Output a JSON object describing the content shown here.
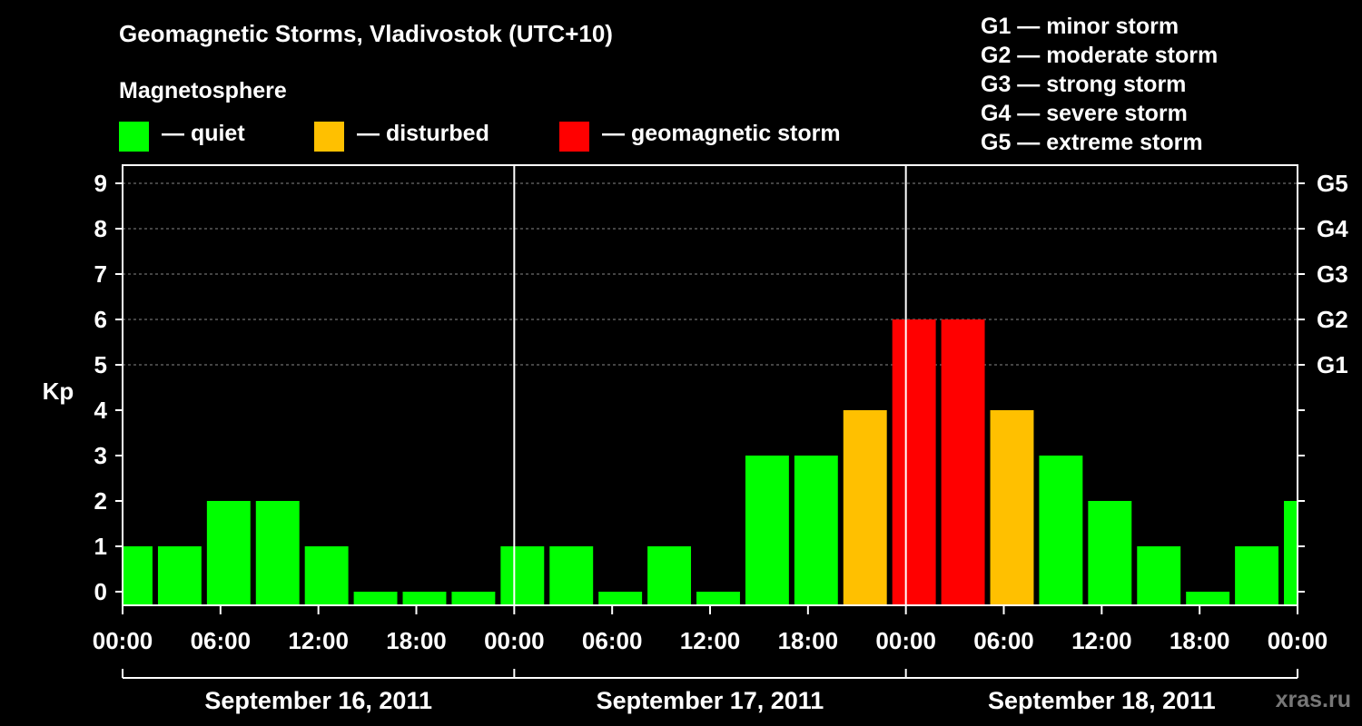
{
  "colors": {
    "quiet": "#00ff00",
    "disturbed": "#ffc000",
    "storm": "#ff0000",
    "background": "#000000",
    "grid": "#888888",
    "watermark": "#777777"
  },
  "legend": {
    "heading": "Magnetosphere",
    "items": [
      {
        "key": "quiet",
        "label": "— quiet"
      },
      {
        "key": "disturbed",
        "label": "— disturbed"
      },
      {
        "key": "storm",
        "label": "— geomagnetic storm"
      }
    ]
  },
  "gscale": [
    "G1 — minor storm",
    "G2 — moderate storm",
    "G3 — strong storm",
    "G4 — severe storm",
    "G5 — extreme storm"
  ],
  "watermark": "xras.ru",
  "chart_data": {
    "type": "bar",
    "title": "Geomagnetic Storms, Vladivostok (UTC+10)",
    "ylabel": "Kp",
    "ylim": [
      0,
      9
    ],
    "y_ticks": [
      0,
      1,
      2,
      3,
      4,
      5,
      6,
      7,
      8,
      9
    ],
    "right_axis": [
      {
        "kp": 5,
        "label": "G1"
      },
      {
        "kp": 6,
        "label": "G2"
      },
      {
        "kp": 7,
        "label": "G3"
      },
      {
        "kp": 8,
        "label": "G4"
      },
      {
        "kp": 9,
        "label": "G5"
      }
    ],
    "x_tick_labels": [
      "00:00",
      "06:00",
      "12:00",
      "18:00",
      "00:00",
      "06:00",
      "12:00",
      "18:00",
      "00:00",
      "06:00",
      "12:00",
      "18:00",
      "00:00"
    ],
    "dates": [
      "September 16, 2011",
      "September 17, 2011",
      "September 18, 2011"
    ],
    "grid": "horizontal dashed",
    "legend_position": "top",
    "interval_hours": 3,
    "intervals": [
      {
        "start": "2011-09-15 23:00",
        "kp": 1,
        "status": "quiet"
      },
      {
        "start": "2011-09-16 02:00",
        "kp": 1,
        "status": "quiet"
      },
      {
        "start": "2011-09-16 05:00",
        "kp": 2,
        "status": "quiet"
      },
      {
        "start": "2011-09-16 08:00",
        "kp": 2,
        "status": "quiet"
      },
      {
        "start": "2011-09-16 11:00",
        "kp": 1,
        "status": "quiet"
      },
      {
        "start": "2011-09-16 14:00",
        "kp": 0,
        "status": "quiet"
      },
      {
        "start": "2011-09-16 17:00",
        "kp": 0,
        "status": "quiet"
      },
      {
        "start": "2011-09-16 20:00",
        "kp": 0,
        "status": "quiet"
      },
      {
        "start": "2011-09-16 23:00",
        "kp": 1,
        "status": "quiet"
      },
      {
        "start": "2011-09-17 02:00",
        "kp": 1,
        "status": "quiet"
      },
      {
        "start": "2011-09-17 05:00",
        "kp": 0,
        "status": "quiet"
      },
      {
        "start": "2011-09-17 08:00",
        "kp": 1,
        "status": "quiet"
      },
      {
        "start": "2011-09-17 11:00",
        "kp": 0,
        "status": "quiet"
      },
      {
        "start": "2011-09-17 14:00",
        "kp": 3,
        "status": "quiet"
      },
      {
        "start": "2011-09-17 17:00",
        "kp": 3,
        "status": "quiet"
      },
      {
        "start": "2011-09-17 20:00",
        "kp": 4,
        "status": "disturbed"
      },
      {
        "start": "2011-09-17 23:00",
        "kp": 6,
        "status": "storm"
      },
      {
        "start": "2011-09-18 02:00",
        "kp": 6,
        "status": "storm"
      },
      {
        "start": "2011-09-18 05:00",
        "kp": 4,
        "status": "disturbed"
      },
      {
        "start": "2011-09-18 08:00",
        "kp": 3,
        "status": "quiet"
      },
      {
        "start": "2011-09-18 11:00",
        "kp": 2,
        "status": "quiet"
      },
      {
        "start": "2011-09-18 14:00",
        "kp": 1,
        "status": "quiet"
      },
      {
        "start": "2011-09-18 17:00",
        "kp": 0,
        "status": "quiet"
      },
      {
        "start": "2011-09-18 20:00",
        "kp": 1,
        "status": "quiet"
      },
      {
        "start": "2011-09-18 23:00",
        "kp": 2,
        "status": "quiet"
      }
    ]
  }
}
